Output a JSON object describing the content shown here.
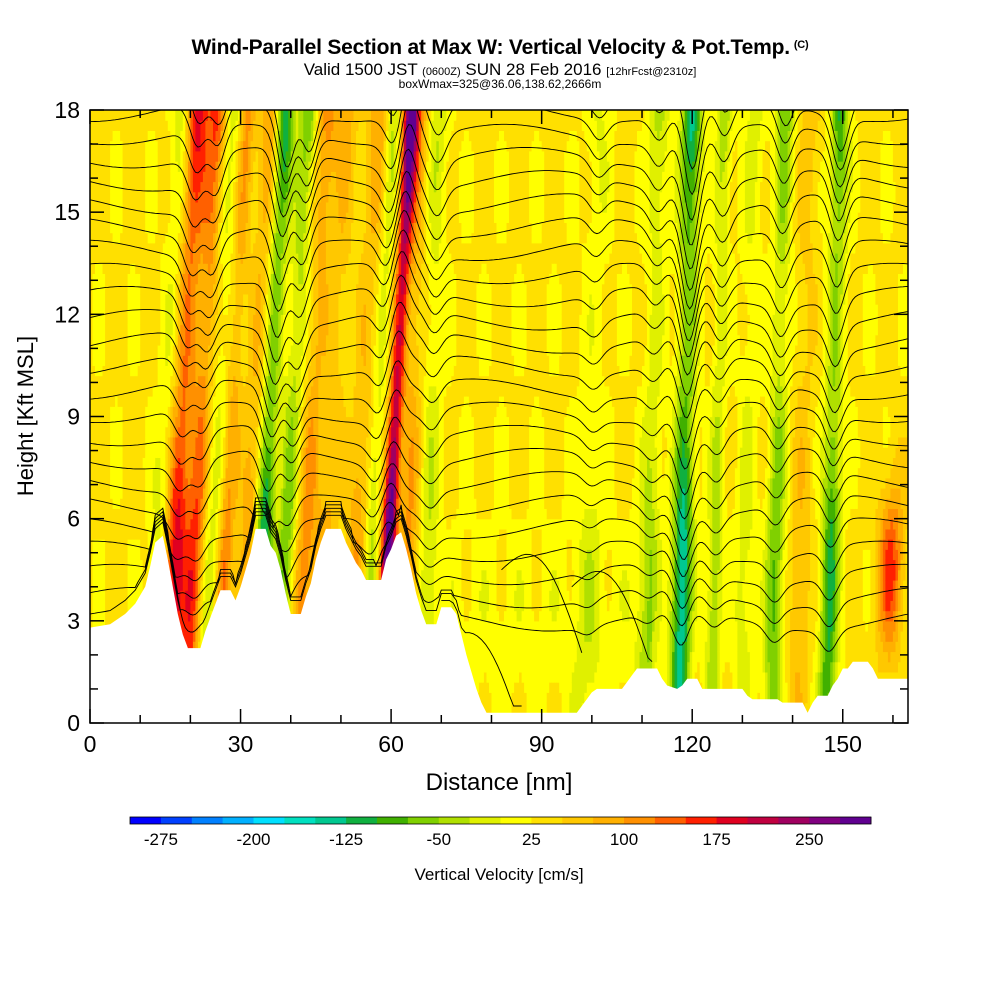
{
  "header": {
    "title": "Wind-Parallel Section at Max W: Vertical Velocity & Pot.Temp.",
    "copyright": "(C)",
    "valid_prefix": "Valid 1500 JST",
    "valid_utc": "(0600Z)",
    "valid_date": "SUN 28 Feb 2016",
    "forecast": "[12hrFcst@2310z]",
    "box_info": "boxWmax=325@36.06,138.62,2666m"
  },
  "chart_data": {
    "type": "heatmap",
    "xlabel": "Distance [nm]",
    "ylabel": "Height [Kft MSL]",
    "xlim": [
      0,
      163
    ],
    "ylim": [
      0,
      18
    ],
    "x_ticks": [
      "0",
      "30",
      "60",
      "90",
      "120",
      "150"
    ],
    "y_ticks": [
      "0",
      "3",
      "6",
      "9",
      "12",
      "15",
      "18"
    ],
    "colorbar": {
      "label": "Vertical Velocity [cm/s]",
      "tick_labels": [
        "-275",
        "-200",
        "-125",
        "-50",
        "25",
        "100",
        "175",
        "250"
      ],
      "tick_values": [
        -275,
        -200,
        -125,
        -50,
        25,
        100,
        175,
        250
      ],
      "range": [
        -300,
        300
      ],
      "colors": [
        "#0000ff",
        "#0040ff",
        "#0080ff",
        "#00b0ff",
        "#00e0ff",
        "#00e0c0",
        "#00c890",
        "#10b040",
        "#40b000",
        "#80d000",
        "#b0e000",
        "#e0f000",
        "#ffff00",
        "#ffe000",
        "#ffc800",
        "#ffb000",
        "#ff9000",
        "#ff6000",
        "#ff2000",
        "#e00020",
        "#c00040",
        "#a00060",
        "#800080",
        "#600090"
      ]
    },
    "terrain_kft": [
      [
        0,
        2.8
      ],
      [
        4,
        2.9
      ],
      [
        7,
        3.2
      ],
      [
        9,
        3.5
      ],
      [
        11,
        4.0
      ],
      [
        12,
        4.6
      ],
      [
        13,
        5.3
      ],
      [
        14.5,
        5.5
      ],
      [
        15.5,
        4.8
      ],
      [
        16.5,
        4.0
      ],
      [
        17.5,
        3.2
      ],
      [
        18.5,
        2.6
      ],
      [
        19.5,
        2.2
      ],
      [
        22,
        2.2
      ],
      [
        23,
        2.7
      ],
      [
        24,
        3.1
      ],
      [
        25,
        3.5
      ],
      [
        26,
        3.9
      ],
      [
        28,
        3.9
      ],
      [
        29,
        3.6
      ],
      [
        30,
        4.0
      ],
      [
        31,
        4.5
      ],
      [
        32,
        5.0
      ],
      [
        33,
        5.7
      ],
      [
        35,
        5.7
      ],
      [
        36,
        5.2
      ],
      [
        37,
        5.0
      ],
      [
        38,
        4.5
      ],
      [
        39,
        3.8
      ],
      [
        40,
        3.2
      ],
      [
        42,
        3.2
      ],
      [
        43,
        3.7
      ],
      [
        44,
        4.1
      ],
      [
        45,
        4.8
      ],
      [
        46,
        5.3
      ],
      [
        47,
        5.7
      ],
      [
        50,
        5.7
      ],
      [
        51,
        5.3
      ],
      [
        52,
        5.0
      ],
      [
        53,
        4.7
      ],
      [
        54,
        4.5
      ],
      [
        55,
        4.2
      ],
      [
        58,
        4.2
      ],
      [
        59,
        4.8
      ],
      [
        60,
        5.1
      ],
      [
        61,
        5.5
      ],
      [
        62,
        5.6
      ],
      [
        63,
        5.1
      ],
      [
        64,
        4.5
      ],
      [
        65,
        3.8
      ],
      [
        66,
        3.3
      ],
      [
        67,
        2.9
      ],
      [
        69,
        2.9
      ],
      [
        70,
        3.4
      ],
      [
        72,
        3.4
      ],
      [
        73,
        3.2
      ],
      [
        74,
        2.6
      ],
      [
        75,
        2.0
      ],
      [
        76,
        1.5
      ],
      [
        77,
        1.0
      ],
      [
        78,
        0.6
      ],
      [
        79,
        0.3
      ],
      [
        84,
        0.3
      ],
      [
        86,
        0.3
      ],
      [
        87,
        0.3
      ],
      [
        88,
        0.3
      ],
      [
        92,
        0.3
      ],
      [
        97,
        0.3
      ],
      [
        98,
        0.5
      ],
      [
        99,
        0.7
      ],
      [
        100,
        0.9
      ],
      [
        101,
        1.0
      ],
      [
        106,
        1.0
      ],
      [
        107,
        1.2
      ],
      [
        108,
        1.4
      ],
      [
        109,
        1.6
      ],
      [
        113,
        1.6
      ],
      [
        114,
        1.3
      ],
      [
        115,
        1.1
      ],
      [
        117,
        1.0
      ],
      [
        118,
        1.1
      ],
      [
        119,
        1.3
      ],
      [
        121,
        1.3
      ],
      [
        122,
        1.0
      ],
      [
        124,
        1.0
      ],
      [
        130,
        1.0
      ],
      [
        131,
        0.8
      ],
      [
        132,
        0.7
      ],
      [
        137,
        0.7
      ],
      [
        138,
        0.6
      ],
      [
        142,
        0.6
      ],
      [
        143,
        0.3
      ],
      [
        144,
        0.6
      ],
      [
        145,
        0.8
      ],
      [
        147,
        0.8
      ],
      [
        148,
        1.1
      ],
      [
        149,
        1.3
      ],
      [
        150,
        1.6
      ],
      [
        151,
        1.6
      ],
      [
        152,
        1.8
      ],
      [
        155,
        1.8
      ],
      [
        156,
        1.6
      ],
      [
        157,
        1.3
      ],
      [
        163,
        1.3
      ]
    ],
    "features": [
      {
        "x": 15,
        "w": 2.0,
        "val": -60
      },
      {
        "x": 18,
        "w": 2.3,
        "val": 170
      },
      {
        "x": 22,
        "w": 2.0,
        "val": 130
      },
      {
        "x": 25,
        "w": 2.0,
        "val": -55
      },
      {
        "x": 28,
        "w": 1.6,
        "val": 90
      },
      {
        "x": 32.5,
        "w": 2.0,
        "val": 80
      },
      {
        "x": 35.5,
        "w": 1.8,
        "val": -170
      },
      {
        "x": 40,
        "w": 1.8,
        "val": -110
      },
      {
        "x": 44,
        "w": 2.0,
        "val": 90
      },
      {
        "x": 48,
        "w": 2.2,
        "val": 55
      },
      {
        "x": 54,
        "w": 2.2,
        "val": 70
      },
      {
        "x": 57,
        "w": 1.4,
        "val": -70
      },
      {
        "x": 60.5,
        "w": 1.4,
        "val": 300
      },
      {
        "x": 64,
        "w": 2.0,
        "val": 80
      },
      {
        "x": 68,
        "w": 2.0,
        "val": -60
      },
      {
        "x": 100,
        "w": 2.5,
        "val": -35
      },
      {
        "x": 112,
        "w": 2.0,
        "val": -70
      },
      {
        "x": 118.5,
        "w": 2.0,
        "val": -180
      },
      {
        "x": 125,
        "w": 1.5,
        "val": -80
      },
      {
        "x": 131,
        "w": 2.0,
        "val": -45
      },
      {
        "x": 137,
        "w": 1.8,
        "val": -110
      },
      {
        "x": 142,
        "w": 2.0,
        "val": 45
      },
      {
        "x": 148,
        "w": 1.8,
        "val": -140
      },
      {
        "x": 160,
        "w": 2.5,
        "val": 130
      }
    ]
  }
}
